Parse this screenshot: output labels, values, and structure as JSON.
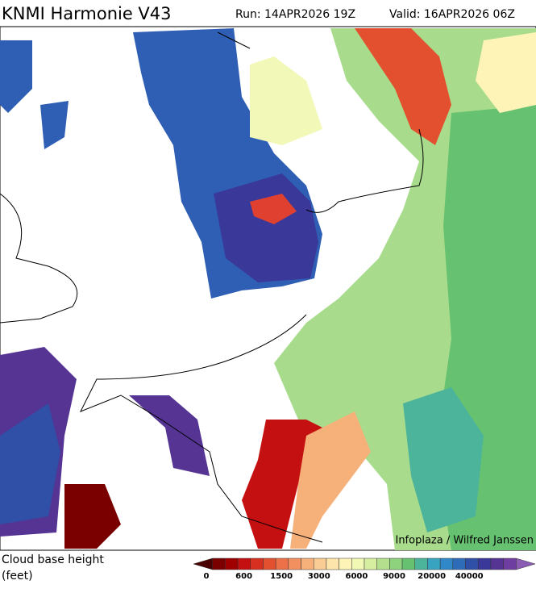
{
  "header": {
    "title": "KNMI Harmonie V43",
    "run": "Run: 14APR2026 19Z",
    "valid": "Valid: 16APR2026 06Z"
  },
  "credit": "Infoplaza / Wilfred Janssen",
  "legend": {
    "title": "Cloud base height",
    "unit": "(feet)",
    "ticks": [
      0,
      600,
      1500,
      3000,
      6000,
      9000,
      20000,
      40000
    ],
    "colors": [
      "#4a0000",
      "#7a0000",
      "#a00000",
      "#c41010",
      "#d83020",
      "#e35030",
      "#ec7048",
      "#f29060",
      "#f6b07a",
      "#f9cc95",
      "#fce4aa",
      "#fef4b8",
      "#f0f8b4",
      "#d6eea0",
      "#b4e08e",
      "#8ed27e",
      "#66c270",
      "#4cb49a",
      "#38a4c0",
      "#3088c8",
      "#2f6cb8",
      "#3050a8",
      "#3a3898",
      "#553494",
      "#6e3ea0",
      "#8a5cb4"
    ]
  }
}
